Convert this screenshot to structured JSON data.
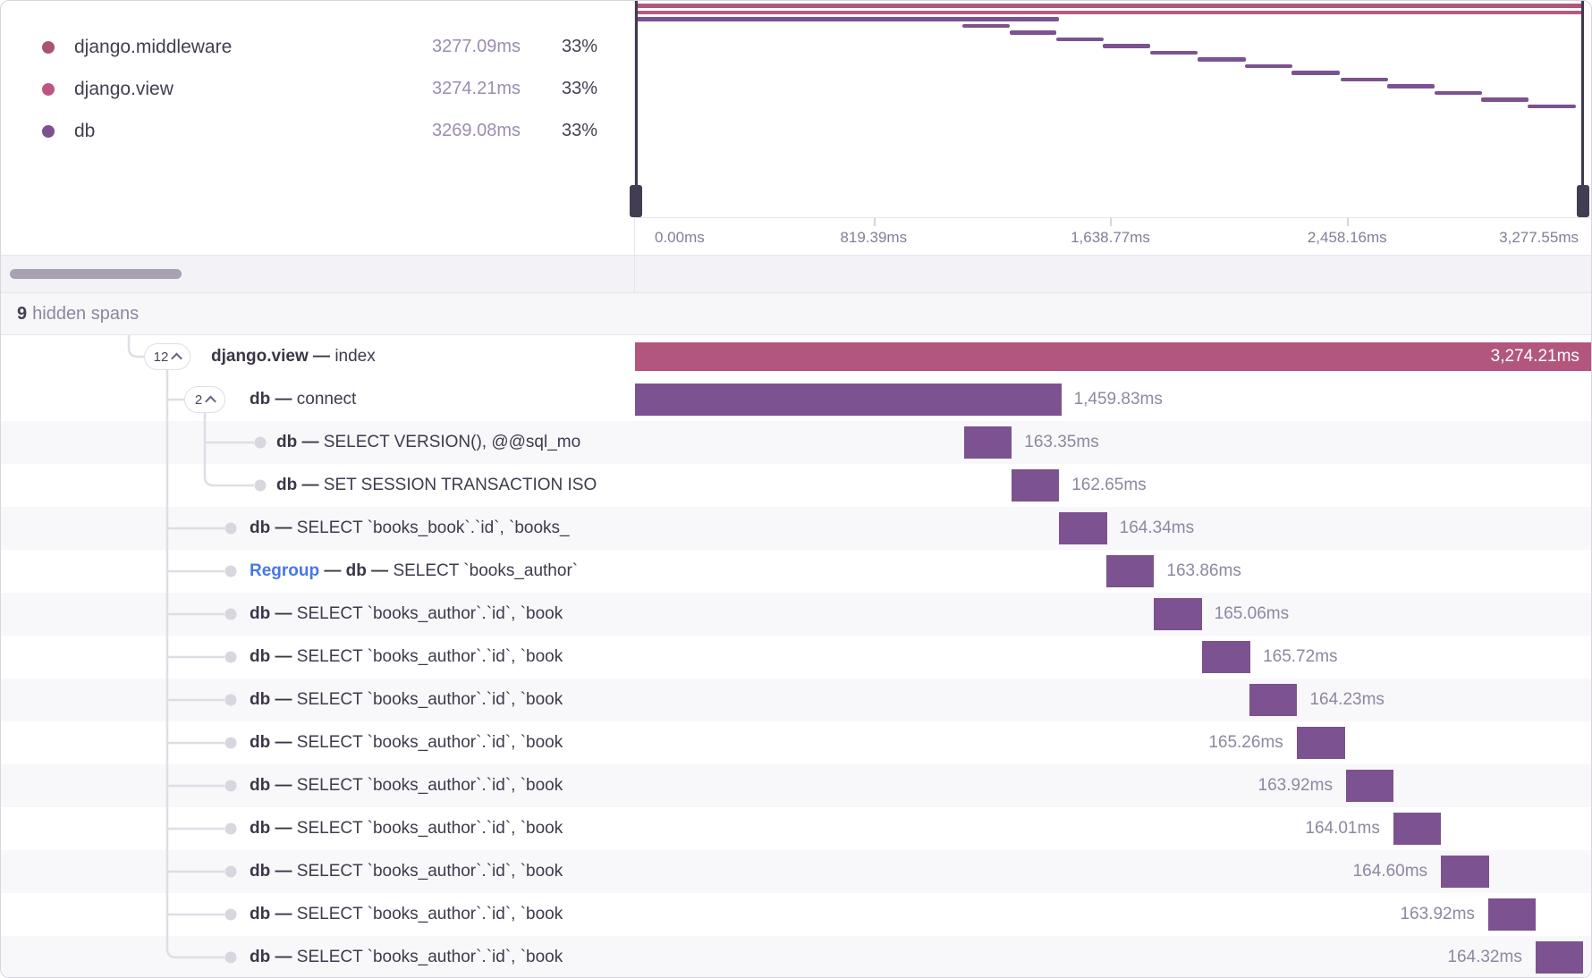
{
  "colors": {
    "pink": "#b2567e",
    "pink_bright": "#b65983",
    "purple": "#7c5290",
    "dot_middleware": "#a85477",
    "dot_view": "#bb5684",
    "dot_db": "#7d5190",
    "connector": "#e0dde6",
    "tree_dot": "#d9d6df"
  },
  "legend": {
    "items": [
      {
        "name": "django.middleware",
        "duration": "3277.09ms",
        "percent": "33%",
        "color": "#a85477"
      },
      {
        "name": "django.view",
        "duration": "3274.21ms",
        "percent": "33%",
        "color": "#bb5684"
      },
      {
        "name": "db",
        "duration": "3269.08ms",
        "percent": "33%",
        "color": "#7d5190"
      }
    ]
  },
  "minimap": {
    "total_ms": 3277.55,
    "axis_labels": [
      {
        "text": "0.00ms",
        "ms": 0,
        "align": "left"
      },
      {
        "text": "819.39ms",
        "ms": 819.39,
        "align": "center"
      },
      {
        "text": "1,638.77ms",
        "ms": 1638.77,
        "align": "center"
      },
      {
        "text": "2,458.16ms",
        "ms": 2458.16,
        "align": "center"
      },
      {
        "text": "3,277.55ms",
        "ms": 3277.55,
        "align": "right"
      }
    ],
    "tick_ms": [
      819.39,
      1638.77,
      2458.16
    ],
    "rows": [
      {
        "name": "django.middleware",
        "start": 0,
        "dur": 3277.09,
        "color": "#b2567e"
      },
      {
        "name": "django.view",
        "start": 0,
        "dur": 3274.21,
        "color": "#b65983"
      },
      {
        "name": "db connect",
        "start": 0,
        "dur": 1459.83,
        "color": "#7c5290"
      },
      {
        "name": "db span",
        "start": 1127,
        "dur": 163.35,
        "color": "#7c5290"
      },
      {
        "name": "db span",
        "start": 1290,
        "dur": 162.65,
        "color": "#7c5290"
      },
      {
        "name": "db span",
        "start": 1452,
        "dur": 164.34,
        "color": "#7c5290"
      },
      {
        "name": "db span",
        "start": 1614,
        "dur": 163.86,
        "color": "#7c5290"
      },
      {
        "name": "db span",
        "start": 1776,
        "dur": 165.06,
        "color": "#7c5290"
      },
      {
        "name": "db span",
        "start": 1942,
        "dur": 165.72,
        "color": "#7c5290"
      },
      {
        "name": "db span",
        "start": 2104,
        "dur": 164.23,
        "color": "#7c5290"
      },
      {
        "name": "db span",
        "start": 2266,
        "dur": 165.26,
        "color": "#7c5290"
      },
      {
        "name": "db span",
        "start": 2435,
        "dur": 163.92,
        "color": "#7c5290"
      },
      {
        "name": "db span",
        "start": 2597,
        "dur": 164.01,
        "color": "#7c5290"
      },
      {
        "name": "db span",
        "start": 2760,
        "dur": 164.6,
        "color": "#7c5290"
      },
      {
        "name": "db span",
        "start": 2922,
        "dur": 163.92,
        "color": "#7c5290"
      },
      {
        "name": "db span",
        "start": 3084,
        "dur": 164.32,
        "color": "#7c5290"
      }
    ]
  },
  "hidden_row": {
    "count": "9",
    "label": "hidden spans"
  },
  "waterfall": {
    "total_ms": 3277.55,
    "spans": [
      {
        "depth": 0,
        "badge": "12",
        "segments": [
          {
            "t": "django.view",
            "s": "b"
          },
          {
            "t": " — ",
            "s": "b"
          },
          {
            "t": "index",
            "s": "r"
          }
        ],
        "start": 0,
        "dur": 3274.21,
        "label": "3,274.21ms",
        "side": "inside",
        "color": "#b2567e",
        "root": true
      },
      {
        "depth": 1,
        "badge": "2",
        "segments": [
          {
            "t": "db",
            "s": "b"
          },
          {
            "t": " — ",
            "s": "b"
          },
          {
            "t": "connect",
            "s": "r"
          }
        ],
        "start": 0,
        "dur": 1459.83,
        "label": "1,459.83ms",
        "side": "right",
        "color": "#7c5290"
      },
      {
        "depth": 2,
        "segments": [
          {
            "t": "db",
            "s": "b"
          },
          {
            "t": " — ",
            "s": "b"
          },
          {
            "t": "SELECT VERSION(), @@sql_mo",
            "s": "r"
          }
        ],
        "start": 1127,
        "dur": 163.35,
        "label": "163.35ms",
        "side": "right",
        "color": "#7c5290"
      },
      {
        "depth": 2,
        "segments": [
          {
            "t": "db",
            "s": "b"
          },
          {
            "t": " — ",
            "s": "b"
          },
          {
            "t": "SET SESSION TRANSACTION ISO",
            "s": "r"
          }
        ],
        "start": 1290,
        "dur": 162.65,
        "label": "162.65ms",
        "side": "right",
        "color": "#7c5290"
      },
      {
        "depth": 1,
        "segments": [
          {
            "t": "db",
            "s": "b"
          },
          {
            "t": " — ",
            "s": "b"
          },
          {
            "t": "SELECT `books_book`.`id`, `books_",
            "s": "r"
          }
        ],
        "start": 1452,
        "dur": 164.34,
        "label": "164.34ms",
        "side": "right",
        "color": "#7c5290"
      },
      {
        "depth": 1,
        "segments": [
          {
            "t": "Regroup",
            "s": "blue"
          },
          {
            "t": " — ",
            "s": "b"
          },
          {
            "t": "db",
            "s": "b"
          },
          {
            "t": " — ",
            "s": "b"
          },
          {
            "t": "SELECT `books_author`",
            "s": "r"
          }
        ],
        "start": 1614,
        "dur": 163.86,
        "label": "163.86ms",
        "side": "right",
        "color": "#7c5290"
      },
      {
        "depth": 1,
        "segments": [
          {
            "t": "db",
            "s": "b"
          },
          {
            "t": " — ",
            "s": "b"
          },
          {
            "t": "SELECT `books_author`.`id`, `book",
            "s": "r"
          }
        ],
        "start": 1776,
        "dur": 165.06,
        "label": "165.06ms",
        "side": "right",
        "color": "#7c5290"
      },
      {
        "depth": 1,
        "segments": [
          {
            "t": "db",
            "s": "b"
          },
          {
            "t": " — ",
            "s": "b"
          },
          {
            "t": "SELECT `books_author`.`id`, `book",
            "s": "r"
          }
        ],
        "start": 1942,
        "dur": 165.72,
        "label": "165.72ms",
        "side": "right",
        "color": "#7c5290"
      },
      {
        "depth": 1,
        "segments": [
          {
            "t": "db",
            "s": "b"
          },
          {
            "t": " — ",
            "s": "b"
          },
          {
            "t": "SELECT `books_author`.`id`, `book",
            "s": "r"
          }
        ],
        "start": 2104,
        "dur": 164.23,
        "label": "164.23ms",
        "side": "right",
        "color": "#7c5290"
      },
      {
        "depth": 1,
        "segments": [
          {
            "t": "db",
            "s": "b"
          },
          {
            "t": " — ",
            "s": "b"
          },
          {
            "t": "SELECT `books_author`.`id`, `book",
            "s": "r"
          }
        ],
        "start": 2266,
        "dur": 165.26,
        "label": "165.26ms",
        "side": "left",
        "color": "#7c5290"
      },
      {
        "depth": 1,
        "segments": [
          {
            "t": "db",
            "s": "b"
          },
          {
            "t": " — ",
            "s": "b"
          },
          {
            "t": "SELECT `books_author`.`id`, `book",
            "s": "r"
          }
        ],
        "start": 2435,
        "dur": 163.92,
        "label": "163.92ms",
        "side": "left",
        "color": "#7c5290"
      },
      {
        "depth": 1,
        "segments": [
          {
            "t": "db",
            "s": "b"
          },
          {
            "t": " — ",
            "s": "b"
          },
          {
            "t": "SELECT `books_author`.`id`, `book",
            "s": "r"
          }
        ],
        "start": 2597,
        "dur": 164.01,
        "label": "164.01ms",
        "side": "left",
        "color": "#7c5290"
      },
      {
        "depth": 1,
        "segments": [
          {
            "t": "db",
            "s": "b"
          },
          {
            "t": " — ",
            "s": "b"
          },
          {
            "t": "SELECT `books_author`.`id`, `book",
            "s": "r"
          }
        ],
        "start": 2760,
        "dur": 164.6,
        "label": "164.60ms",
        "side": "left",
        "color": "#7c5290"
      },
      {
        "depth": 1,
        "segments": [
          {
            "t": "db",
            "s": "b"
          },
          {
            "t": " — ",
            "s": "b"
          },
          {
            "t": "SELECT `books_author`.`id`, `book",
            "s": "r"
          }
        ],
        "start": 2922,
        "dur": 163.92,
        "label": "163.92ms",
        "side": "left",
        "color": "#7c5290"
      },
      {
        "depth": 1,
        "segments": [
          {
            "t": "db",
            "s": "b"
          },
          {
            "t": " — ",
            "s": "b"
          },
          {
            "t": "SELECT `books_author`.`id`, `book",
            "s": "r"
          }
        ],
        "start": 3084,
        "dur": 164.32,
        "label": "164.32ms",
        "side": "left",
        "color": "#7c5290"
      }
    ]
  }
}
